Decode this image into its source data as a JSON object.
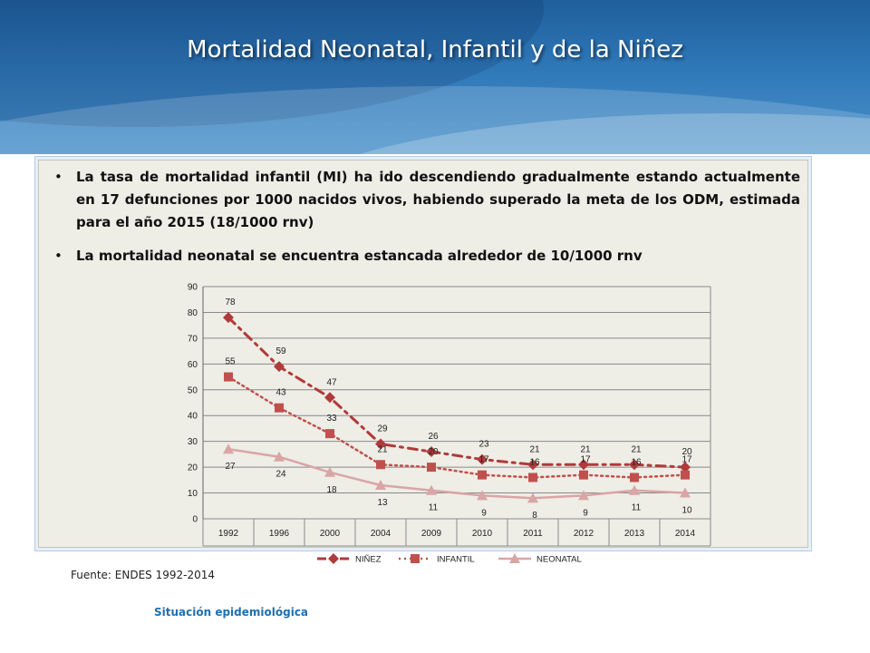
{
  "slide": {
    "title": "Mortalidad Neonatal, Infantil y de la Niñez",
    "bullets": [
      "La tasa de mortalidad infantil (MI) ha ido descendiendo gradualmente estando actualmente en 17 defunciones por 1000 nacidos vivos, habiendo superado la meta de los ODM, estimada para el año 2015 (18/1000 rnv)",
      "La mortalidad neonatal se encuentra estancada alrededor de 10/1000 rnv"
    ],
    "source": "Fuente: ENDES 1992-2014",
    "footer": "Situación epidemiológica"
  },
  "colors": {
    "header_blue": "#2f78b8",
    "ninez": "#b03a3a",
    "infantil": "#c0504d",
    "neonatal": "#d9a5a5",
    "footer_text": "#1f6fb0"
  },
  "chart_data": {
    "type": "line",
    "categories": [
      "1992",
      "1996",
      "2000",
      "2004",
      "2009",
      "2010",
      "2011",
      "2012",
      "2013",
      "2014"
    ],
    "ylim": [
      0,
      90
    ],
    "yticks": [
      0,
      10,
      20,
      30,
      40,
      50,
      60,
      70,
      80,
      90
    ],
    "grid": true,
    "legend": "bottom",
    "series": [
      {
        "name": "NIÑEZ",
        "values": [
          78,
          59,
          47,
          29,
          26,
          23,
          21,
          21,
          21,
          20
        ],
        "style": "dash-dot",
        "marker": "diamond"
      },
      {
        "name": "INFANTIL",
        "values": [
          55,
          43,
          33,
          21,
          20,
          17,
          16,
          17,
          16,
          17
        ],
        "style": "dotted",
        "marker": "square"
      },
      {
        "name": "NEONATAL",
        "values": [
          27,
          24,
          18,
          13,
          11,
          9,
          8,
          9,
          11,
          10
        ],
        "style": "solid",
        "marker": "triangle"
      }
    ]
  }
}
